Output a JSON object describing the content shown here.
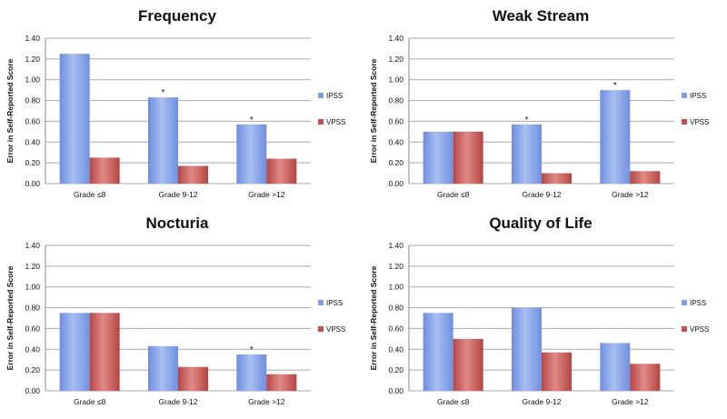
{
  "chart_data": [
    {
      "type": "bar",
      "title": "Frequency",
      "ylabel": "Error in Self-Reported Score",
      "ylim": [
        0,
        1.4
      ],
      "yticks": [
        "0.00",
        "0.20",
        "0.40",
        "0.60",
        "0.80",
        "1.00",
        "1.20",
        "1.40"
      ],
      "categories": [
        "Grade ≤8",
        "Grade 9-12",
        "Grade >12"
      ],
      "series": [
        {
          "name": "IPSS",
          "values": [
            1.25,
            0.83,
            0.57
          ]
        },
        {
          "name": "VPSS",
          "values": [
            0.25,
            0.17,
            0.24
          ]
        }
      ],
      "significance": [
        "",
        "*",
        "*"
      ],
      "grid": true,
      "legend": "right"
    },
    {
      "type": "bar",
      "title": "Weak Stream",
      "ylabel": "Error in Self-Reported Score",
      "ylim": [
        0,
        1.4
      ],
      "yticks": [
        "0.00",
        "0.20",
        "0.40",
        "0.60",
        "0.80",
        "1.00",
        "1.20",
        "1.40"
      ],
      "categories": [
        "Grade ≤8",
        "Grade 9-12",
        "Grade >12"
      ],
      "series": [
        {
          "name": "IPSS",
          "values": [
            0.5,
            0.57,
            0.9
          ]
        },
        {
          "name": "VPSS",
          "values": [
            0.5,
            0.1,
            0.12
          ]
        }
      ],
      "significance": [
        "",
        "*",
        "*"
      ],
      "grid": true,
      "legend": "right"
    },
    {
      "type": "bar",
      "title": "Nocturia",
      "ylabel": "Error in Self-Reported Score",
      "ylim": [
        0,
        1.4
      ],
      "yticks": [
        "0.00",
        "0.20",
        "0.40",
        "0.60",
        "0.80",
        "1.00",
        "1.20",
        "1.40"
      ],
      "categories": [
        "Grade ≤8",
        "Grade 9-12",
        "Grade >12"
      ],
      "series": [
        {
          "name": "IPSS",
          "values": [
            0.75,
            0.43,
            0.35
          ]
        },
        {
          "name": "VPSS",
          "values": [
            0.75,
            0.23,
            0.16
          ]
        }
      ],
      "significance": [
        "",
        "",
        "*"
      ],
      "grid": true,
      "legend": "right"
    },
    {
      "type": "bar",
      "title": "Quality of Life",
      "ylabel": "Error in Self-Reported Score",
      "ylim": [
        0,
        1.4
      ],
      "yticks": [
        "0.00",
        "0.20",
        "0.40",
        "0.60",
        "0.80",
        "1.00",
        "1.20",
        "1.40"
      ],
      "categories": [
        "Grade ≤8",
        "Grade 9-12",
        "Grade >12"
      ],
      "series": [
        {
          "name": "IPSS",
          "values": [
            0.75,
            0.8,
            0.46
          ]
        },
        {
          "name": "VPSS",
          "values": [
            0.5,
            0.37,
            0.26
          ]
        }
      ],
      "significance": [
        "",
        "",
        ""
      ],
      "grid": true,
      "legend": "right"
    }
  ],
  "colors": {
    "IPSS": "#7f9ee6",
    "VPSS": "#c2504e",
    "grid": "#a8a8a8",
    "text": "#111111"
  }
}
